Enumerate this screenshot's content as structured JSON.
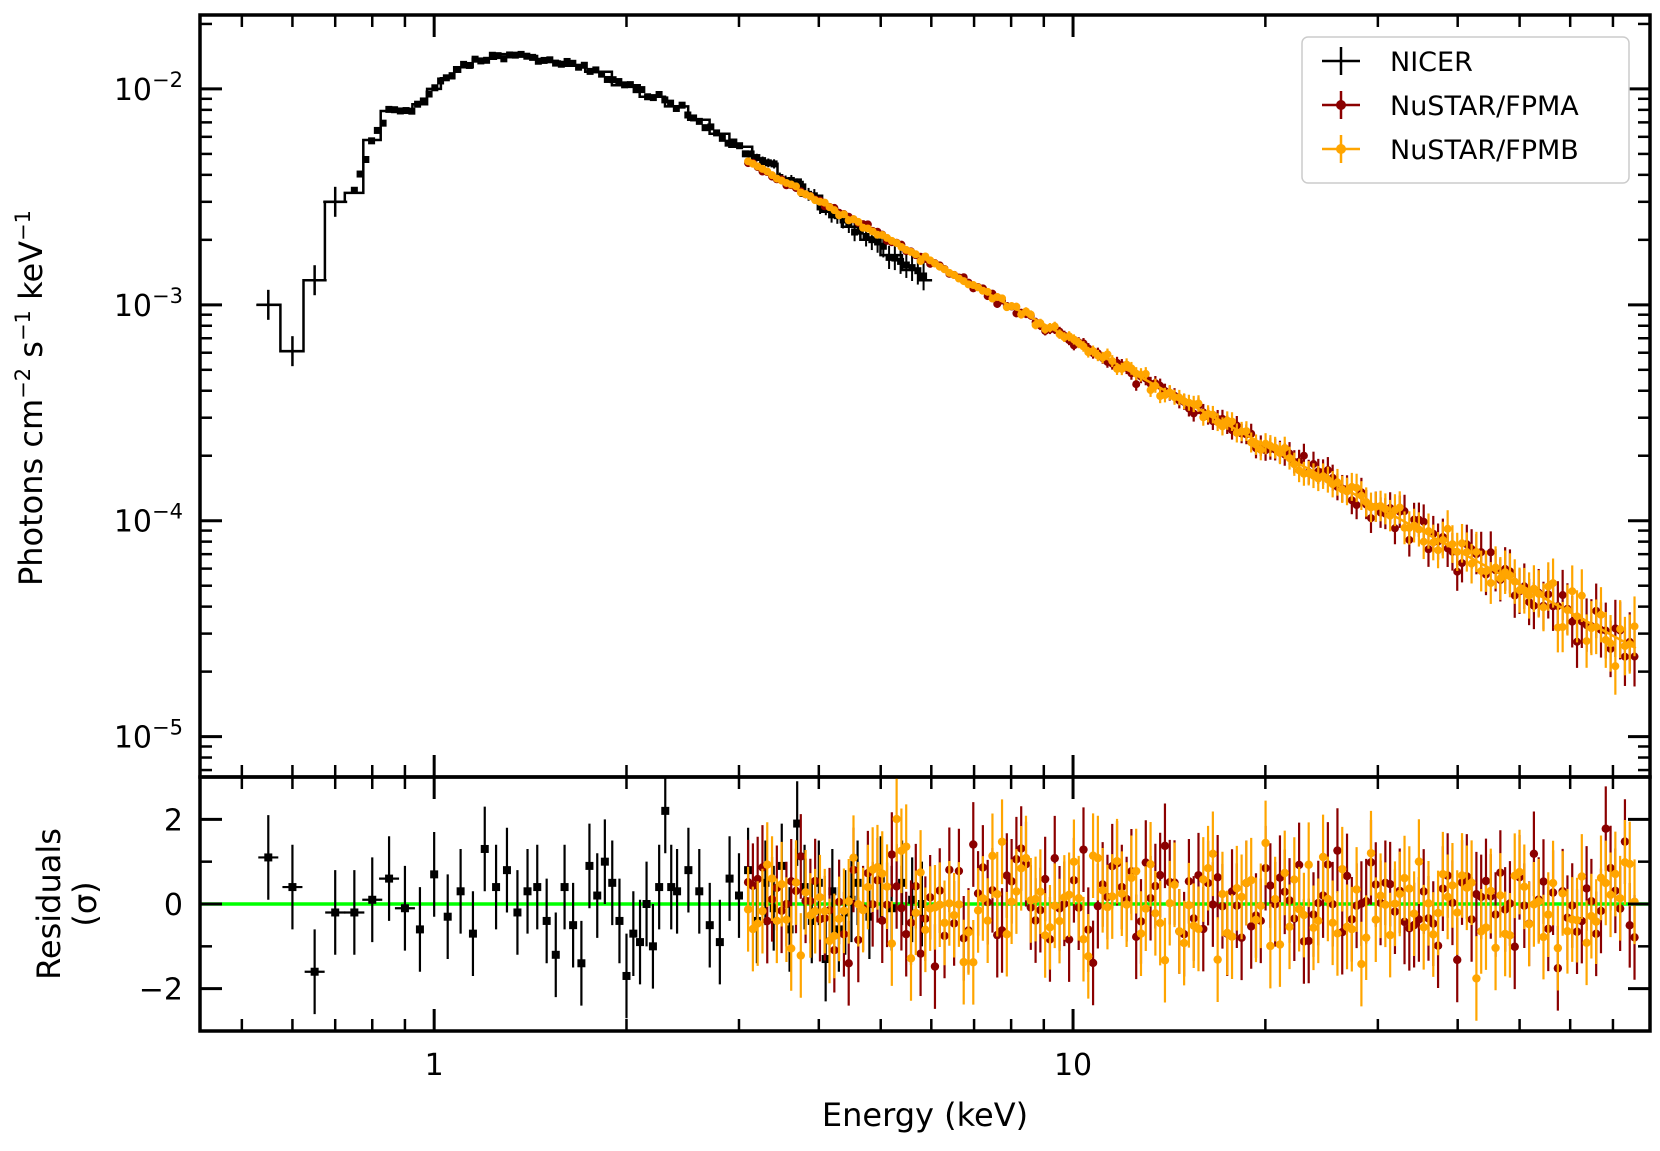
{
  "chart_data": [
    {
      "panel": "spectrum",
      "type": "scatter",
      "xscale": "log",
      "yscale": "log",
      "xlim": [
        0.43,
        80
      ],
      "ylim": [
        6.5e-06,
        0.022
      ],
      "x_ticks": [
        {
          "value": 1,
          "label": "1"
        },
        {
          "value": 10,
          "label": "10"
        }
      ],
      "y_ticks": [
        {
          "value": 0.01,
          "base": "10",
          "exp": "−2"
        },
        {
          "value": 0.001,
          "base": "10",
          "exp": "−3"
        },
        {
          "value": 0.0001,
          "base": "10",
          "exp": "−4"
        },
        {
          "value": 1e-05,
          "base": "10",
          "exp": "−5"
        }
      ],
      "ylabel_main": "Photons cm",
      "ylabel_exp1": "−2",
      "ylabel_s": " s",
      "ylabel_exp2": "−1",
      "ylabel_kev": " keV",
      "ylabel_exp3": "−1",
      "legend_position": "top-right",
      "series": [
        {
          "name": "NICER",
          "color": "#000000",
          "marker": "errorbar-step",
          "points": [
            [
              0.55,
              0.001
            ],
            [
              0.6,
              0.00061
            ],
            [
              0.65,
              0.0013
            ],
            [
              0.7,
              0.003
            ],
            [
              0.75,
              0.0033
            ],
            [
              0.8,
              0.0058
            ],
            [
              0.85,
              0.0079
            ],
            [
              0.9,
              0.008
            ],
            [
              0.95,
              0.0085
            ],
            [
              1.0,
              0.01
            ],
            [
              1.05,
              0.0112
            ],
            [
              1.1,
              0.0126
            ],
            [
              1.2,
              0.0138
            ],
            [
              1.3,
              0.0145
            ],
            [
              1.4,
              0.0142
            ],
            [
              1.5,
              0.0134
            ],
            [
              1.65,
              0.0128
            ],
            [
              1.8,
              0.012
            ],
            [
              2.0,
              0.0104
            ],
            [
              2.2,
              0.0092
            ],
            [
              2.4,
              0.0083
            ],
            [
              2.6,
              0.0072
            ],
            [
              2.8,
              0.0062
            ],
            [
              3.0,
              0.0054
            ],
            [
              3.3,
              0.0045
            ],
            [
              3.6,
              0.0038
            ],
            [
              3.9,
              0.0032
            ],
            [
              4.2,
              0.0027
            ],
            [
              4.5,
              0.0023
            ],
            [
              4.8,
              0.002
            ],
            [
              5.2,
              0.0017
            ],
            [
              5.6,
              0.00145
            ],
            [
              5.9,
              0.0013
            ]
          ]
        },
        {
          "name": "NuSTAR/FPMA",
          "color": "#8b0000",
          "marker": "errorbar-dot",
          "x_range": [
            3.1,
            76
          ],
          "model": {
            "norm_at_1kev": 0.0286,
            "photon_index": 1.62
          }
        },
        {
          "name": "NuSTAR/FPMB",
          "color": "#ffa500",
          "marker": "errorbar-dot",
          "x_range": [
            3.1,
            76
          ],
          "model": {
            "norm_at_1kev": 0.0286,
            "photon_index": 1.62
          }
        }
      ],
      "model_line": {
        "color_nicer": "#000000",
        "color_fpmb": "#ffa500"
      }
    },
    {
      "panel": "residuals",
      "type": "scatter",
      "xscale": "log",
      "xlim": [
        0.43,
        80
      ],
      "ylim": [
        -3,
        3
      ],
      "y_ticks": [
        {
          "value": 2,
          "label": "2"
        },
        {
          "value": 0,
          "label": "0"
        },
        {
          "value": -2,
          "label": "−2"
        }
      ],
      "x_ticks": [
        {
          "value": 1,
          "label": "1"
        },
        {
          "value": 10,
          "label": "10"
        }
      ],
      "ylabel_line1": "Residuals",
      "ylabel_line2": "(σ)",
      "xlabel": "Energy (keV)",
      "zero_line_color": "#00ff00",
      "nicer_residuals": [
        [
          0.55,
          1.1
        ],
        [
          0.6,
          0.4
        ],
        [
          0.65,
          -1.6
        ],
        [
          0.7,
          -0.2
        ],
        [
          0.75,
          -0.2
        ],
        [
          0.8,
          0.1
        ],
        [
          0.85,
          0.6
        ],
        [
          0.9,
          -0.1
        ],
        [
          0.95,
          -0.6
        ],
        [
          1.0,
          0.7
        ],
        [
          1.05,
          -0.3
        ],
        [
          1.1,
          0.3
        ],
        [
          1.15,
          -0.7
        ],
        [
          1.2,
          1.3
        ],
        [
          1.25,
          0.4
        ],
        [
          1.3,
          0.8
        ],
        [
          1.35,
          -0.2
        ],
        [
          1.4,
          0.3
        ],
        [
          1.45,
          0.4
        ],
        [
          1.5,
          -0.4
        ],
        [
          1.55,
          -1.2
        ],
        [
          1.6,
          0.4
        ],
        [
          1.65,
          -0.5
        ],
        [
          1.7,
          -1.4
        ],
        [
          1.75,
          0.9
        ],
        [
          1.8,
          0.2
        ],
        [
          1.85,
          1.0
        ],
        [
          1.9,
          0.5
        ],
        [
          1.95,
          -0.4
        ],
        [
          2.0,
          -1.7
        ],
        [
          2.05,
          -0.7
        ],
        [
          2.1,
          -0.9
        ],
        [
          2.15,
          0.0
        ],
        [
          2.2,
          -1.0
        ],
        [
          2.25,
          0.4
        ],
        [
          2.3,
          2.2
        ],
        [
          2.35,
          0.4
        ],
        [
          2.4,
          0.3
        ],
        [
          2.5,
          0.8
        ],
        [
          2.6,
          0.3
        ],
        [
          2.7,
          -0.5
        ],
        [
          2.8,
          -0.9
        ],
        [
          2.9,
          0.6
        ],
        [
          3.0,
          0.2
        ],
        [
          3.1,
          0.8
        ],
        [
          3.2,
          -0.4
        ],
        [
          3.3,
          0.5
        ],
        [
          3.4,
          -0.1
        ],
        [
          3.5,
          0.9
        ],
        [
          3.6,
          -0.6
        ],
        [
          3.7,
          1.9
        ],
        [
          3.8,
          0.4
        ],
        [
          3.9,
          -0.4
        ],
        [
          4.0,
          0.5
        ],
        [
          4.1,
          -1.3
        ],
        [
          4.2,
          0.3
        ],
        [
          4.3,
          -0.6
        ],
        [
          4.4,
          -0.2
        ],
        [
          4.5,
          0.1
        ],
        [
          4.6,
          0.5
        ],
        [
          4.8,
          -0.3
        ],
        [
          5.0,
          0.6
        ],
        [
          5.2,
          -0.1
        ],
        [
          5.4,
          0.5
        ],
        [
          5.6,
          0.1
        ],
        [
          5.8,
          0.0
        ]
      ]
    }
  ],
  "legend": [
    {
      "label": "NICER",
      "color": "#000000"
    },
    {
      "label": "NuSTAR/FPMA",
      "color": "#8b0000"
    },
    {
      "label": "NuSTAR/FPMB",
      "color": "#ffa500"
    }
  ]
}
